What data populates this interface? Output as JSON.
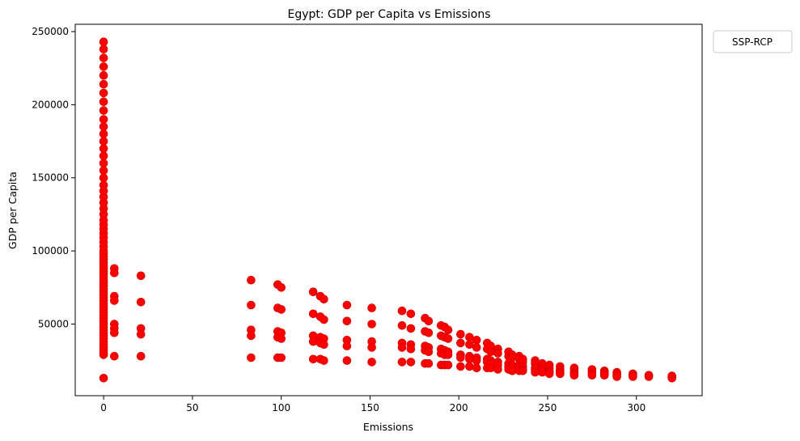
{
  "chart_data": {
    "type": "scatter",
    "title": "Egypt: GDP per Capita vs Emissions",
    "xlabel": "Emissions",
    "ylabel": "GDP per Capita",
    "xlim": [
      -16,
      337
    ],
    "ylim": [
      1000,
      255000
    ],
    "xticks": [
      0,
      50,
      100,
      150,
      200,
      250,
      300
    ],
    "yticks": [
      50000,
      100000,
      150000,
      200000,
      250000
    ],
    "grid": false,
    "legend": {
      "title": "SSP-RCP",
      "placement": "outside-top-right"
    },
    "colors": {
      "marker": "#ff0000",
      "marker_edge": "#cc0000"
    },
    "series": [
      {
        "points": [
          [
            0,
            13000
          ],
          [
            0,
            29000
          ],
          [
            0,
            30000
          ],
          [
            0,
            32000
          ],
          [
            0,
            34000
          ],
          [
            0,
            36000
          ],
          [
            0,
            38000
          ],
          [
            0,
            40000
          ],
          [
            0,
            42000
          ],
          [
            0,
            44000
          ],
          [
            0,
            46000
          ],
          [
            0,
            48000
          ],
          [
            0,
            50000
          ],
          [
            0,
            52000
          ],
          [
            0,
            54000
          ],
          [
            0,
            56000
          ],
          [
            0,
            58000
          ],
          [
            0,
            60000
          ],
          [
            0,
            62000
          ],
          [
            0,
            64000
          ],
          [
            0,
            66000
          ],
          [
            0,
            68000
          ],
          [
            0,
            70000
          ],
          [
            0,
            72000
          ],
          [
            0,
            74000
          ],
          [
            0,
            76000
          ],
          [
            0,
            78000
          ],
          [
            0,
            80000
          ],
          [
            0,
            82000
          ],
          [
            0,
            84000
          ],
          [
            0,
            86000
          ],
          [
            0,
            88000
          ],
          [
            0,
            90000
          ],
          [
            0,
            92000
          ],
          [
            0,
            94000
          ],
          [
            0,
            96000
          ],
          [
            0,
            98000
          ],
          [
            0,
            100000
          ],
          [
            0,
            103000
          ],
          [
            0,
            106000
          ],
          [
            0,
            109000
          ],
          [
            0,
            112000
          ],
          [
            0,
            115000
          ],
          [
            0,
            118000
          ],
          [
            0,
            121000
          ],
          [
            0,
            125000
          ],
          [
            0,
            129000
          ],
          [
            0,
            133000
          ],
          [
            0,
            137000
          ],
          [
            0,
            141000
          ],
          [
            0,
            145000
          ],
          [
            0,
            150000
          ],
          [
            0,
            155000
          ],
          [
            0,
            160000
          ],
          [
            0,
            165000
          ],
          [
            0,
            170000
          ],
          [
            0,
            175000
          ],
          [
            0,
            180000
          ],
          [
            0,
            185000
          ],
          [
            0,
            190000
          ],
          [
            0,
            196000
          ],
          [
            0,
            202000
          ],
          [
            0,
            208000
          ],
          [
            0,
            214000
          ],
          [
            0,
            220000
          ],
          [
            0,
            226000
          ],
          [
            0,
            232000
          ],
          [
            0,
            238000
          ],
          [
            0,
            243000
          ],
          [
            6,
            88000
          ],
          [
            6,
            85000
          ],
          [
            6,
            69000
          ],
          [
            6,
            66000
          ],
          [
            6,
            50000
          ],
          [
            6,
            47000
          ],
          [
            6,
            44000
          ],
          [
            6,
            28000
          ],
          [
            21,
            83000
          ],
          [
            21,
            65000
          ],
          [
            21,
            47000
          ],
          [
            21,
            43000
          ],
          [
            21,
            28000
          ],
          [
            83,
            80000
          ],
          [
            83,
            63000
          ],
          [
            83,
            46000
          ],
          [
            83,
            42000
          ],
          [
            83,
            27000
          ],
          [
            98,
            77000
          ],
          [
            98,
            61000
          ],
          [
            98,
            45000
          ],
          [
            98,
            41000
          ],
          [
            98,
            27000
          ],
          [
            100,
            75000
          ],
          [
            100,
            60000
          ],
          [
            100,
            44000
          ],
          [
            100,
            40000
          ],
          [
            100,
            27000
          ],
          [
            118,
            72000
          ],
          [
            118,
            57000
          ],
          [
            118,
            42000
          ],
          [
            118,
            38000
          ],
          [
            118,
            26000
          ],
          [
            122,
            69000
          ],
          [
            122,
            55000
          ],
          [
            122,
            41000
          ],
          [
            122,
            37000
          ],
          [
            122,
            26000
          ],
          [
            124,
            67000
          ],
          [
            124,
            53000
          ],
          [
            124,
            40000
          ],
          [
            124,
            36000
          ],
          [
            124,
            25000
          ],
          [
            137,
            63000
          ],
          [
            137,
            52000
          ],
          [
            137,
            39000
          ],
          [
            137,
            35000
          ],
          [
            137,
            25000
          ],
          [
            151,
            61000
          ],
          [
            151,
            50000
          ],
          [
            151,
            38000
          ],
          [
            151,
            34000
          ],
          [
            151,
            24000
          ],
          [
            168,
            59000
          ],
          [
            168,
            49000
          ],
          [
            168,
            37000
          ],
          [
            168,
            34000
          ],
          [
            168,
            24000
          ],
          [
            173,
            57000
          ],
          [
            173,
            47000
          ],
          [
            173,
            36000
          ],
          [
            173,
            33000
          ],
          [
            173,
            24000
          ],
          [
            181,
            54000
          ],
          [
            181,
            45000
          ],
          [
            181,
            35000
          ],
          [
            181,
            32000
          ],
          [
            181,
            23000
          ],
          [
            183,
            52000
          ],
          [
            183,
            44000
          ],
          [
            183,
            34000
          ],
          [
            183,
            31000
          ],
          [
            183,
            23000
          ],
          [
            190,
            49000
          ],
          [
            190,
            42000
          ],
          [
            190,
            33000
          ],
          [
            190,
            30000
          ],
          [
            190,
            22000
          ],
          [
            192,
            48000
          ],
          [
            192,
            41000
          ],
          [
            192,
            32000
          ],
          [
            192,
            29000
          ],
          [
            192,
            22000
          ],
          [
            194,
            46000
          ],
          [
            194,
            40000
          ],
          [
            194,
            31000
          ],
          [
            194,
            29000
          ],
          [
            194,
            22000
          ],
          [
            201,
            43000
          ],
          [
            201,
            37000
          ],
          [
            201,
            29000
          ],
          [
            201,
            27000
          ],
          [
            201,
            21000
          ],
          [
            206,
            41000
          ],
          [
            206,
            36000
          ],
          [
            206,
            28000
          ],
          [
            206,
            26000
          ],
          [
            206,
            21000
          ],
          [
            210,
            39000
          ],
          [
            210,
            34000
          ],
          [
            210,
            27000
          ],
          [
            210,
            25000
          ],
          [
            210,
            20000
          ],
          [
            216,
            37000
          ],
          [
            216,
            33000
          ],
          [
            216,
            26000
          ],
          [
            216,
            24000
          ],
          [
            216,
            20000
          ],
          [
            218,
            35000
          ],
          [
            218,
            31000
          ],
          [
            218,
            25000
          ],
          [
            218,
            23000
          ],
          [
            218,
            20000
          ],
          [
            222,
            33000
          ],
          [
            222,
            30000
          ],
          [
            222,
            24000
          ],
          [
            222,
            22000
          ],
          [
            222,
            19000
          ],
          [
            228,
            31000
          ],
          [
            228,
            28000
          ],
          [
            228,
            23000
          ],
          [
            228,
            21000
          ],
          [
            228,
            19000
          ],
          [
            230,
            29000
          ],
          [
            230,
            27000
          ],
          [
            230,
            22000
          ],
          [
            230,
            20000
          ],
          [
            230,
            18000
          ],
          [
            234,
            28000
          ],
          [
            234,
            26000
          ],
          [
            234,
            22000
          ],
          [
            234,
            20000
          ],
          [
            234,
            18000
          ],
          [
            236,
            26000
          ],
          [
            236,
            24000
          ],
          [
            236,
            21000
          ],
          [
            236,
            19000
          ],
          [
            236,
            18000
          ],
          [
            243,
            25000
          ],
          [
            243,
            23000
          ],
          [
            243,
            20000
          ],
          [
            243,
            19000
          ],
          [
            243,
            17000
          ],
          [
            247,
            23000
          ],
          [
            247,
            21000
          ],
          [
            247,
            19000
          ],
          [
            247,
            18000
          ],
          [
            247,
            17000
          ],
          [
            251,
            22000
          ],
          [
            251,
            20000
          ],
          [
            251,
            18000
          ],
          [
            251,
            17000
          ],
          [
            251,
            16000
          ],
          [
            257,
            21000
          ],
          [
            257,
            19000
          ],
          [
            257,
            18000
          ],
          [
            257,
            17000
          ],
          [
            257,
            16000
          ],
          [
            265,
            20000
          ],
          [
            265,
            19000
          ],
          [
            265,
            17000
          ],
          [
            265,
            16000
          ],
          [
            265,
            15000
          ],
          [
            275,
            19000
          ],
          [
            275,
            18000
          ],
          [
            275,
            16000
          ],
          [
            275,
            15000
          ],
          [
            282,
            18000
          ],
          [
            282,
            17000
          ],
          [
            282,
            16000
          ],
          [
            282,
            15000
          ],
          [
            289,
            17000
          ],
          [
            289,
            16000
          ],
          [
            289,
            15000
          ],
          [
            289,
            14000
          ],
          [
            298,
            16000
          ],
          [
            298,
            15000
          ],
          [
            298,
            14000
          ],
          [
            307,
            15000
          ],
          [
            307,
            14000
          ],
          [
            320,
            14500
          ],
          [
            320,
            14000
          ],
          [
            320,
            13000
          ]
        ]
      }
    ]
  }
}
